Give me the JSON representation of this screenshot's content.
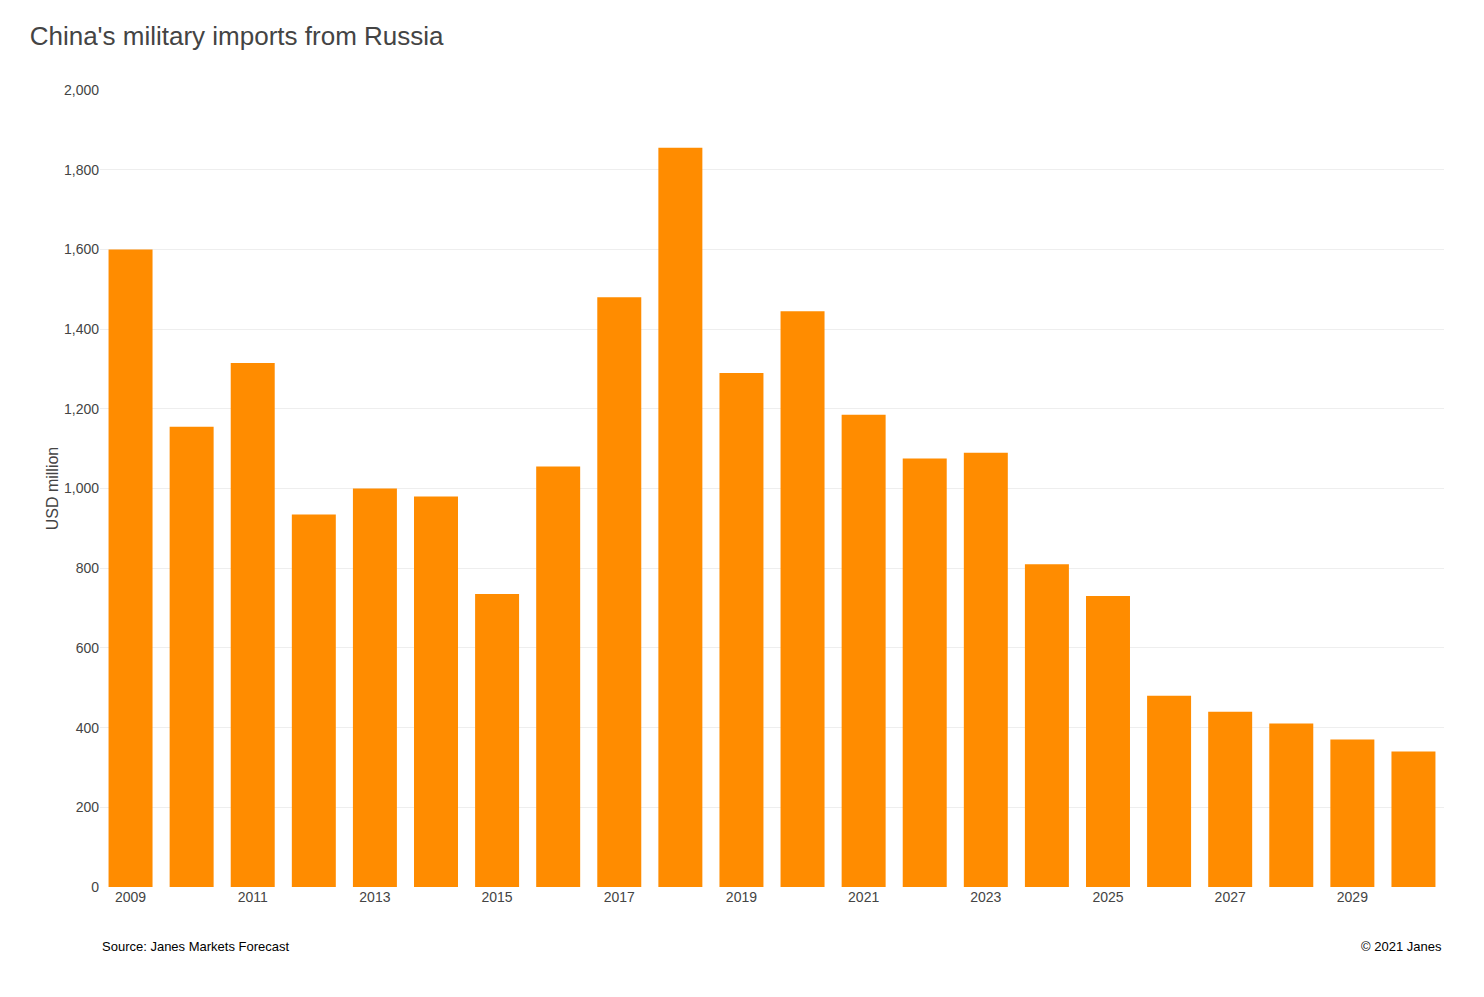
{
  "chart_data": {
    "type": "bar",
    "title": "China's military imports from Russia",
    "y_label": "USD million",
    "annotations": [
      "Source: Janes Markets Forecast",
      "© 2021 Janes"
    ],
    "categories": [
      "2009",
      null,
      "2011",
      null,
      "2013",
      null,
      "2015",
      null,
      "2017",
      null,
      "2019",
      null,
      "2021",
      null,
      "2023",
      null,
      "2025",
      null,
      "2027",
      null,
      "2029",
      null
    ],
    "values": [
      1600,
      1155,
      1315,
      935,
      1000,
      980,
      735,
      1055,
      1480,
      1855,
      1290,
      1445,
      1185,
      1075,
      1090,
      810,
      730,
      480,
      440,
      410,
      370,
      340
    ],
    "color": "#FF8C00",
    "ylim": [
      0,
      2000
    ],
    "yticks": [
      0,
      200,
      400,
      600,
      800,
      {
        "value": 1000,
        "label": "1,000"
      },
      {
        "value": 1200,
        "label": "1,200"
      },
      {
        "value": 1400,
        "label": "1,400"
      },
      {
        "value": 1600,
        "label": "1,600"
      },
      {
        "value": 1800,
        "label": "1,800"
      },
      {
        "value": 2000,
        "label": "2,000"
      }
    ],
    "grid": true
  }
}
